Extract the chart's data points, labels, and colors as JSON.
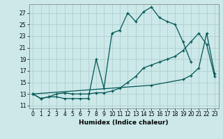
{
  "xlabel": "Humidex (Indice chaleur)",
  "bg_color": "#cce8e8",
  "grid_color": "#b0d0d0",
  "line_color": "#005555",
  "xlim": [
    -0.5,
    23.5
  ],
  "ylim": [
    10.5,
    28.5
  ],
  "xticks": [
    0,
    1,
    2,
    3,
    4,
    5,
    6,
    7,
    8,
    9,
    10,
    11,
    12,
    13,
    14,
    15,
    16,
    17,
    18,
    19,
    20,
    21,
    22,
    23
  ],
  "yticks": [
    11,
    13,
    15,
    17,
    19,
    21,
    23,
    25,
    27
  ],
  "series1_x": [
    0,
    1,
    2,
    3,
    4,
    5,
    6,
    7,
    8,
    9,
    10,
    11,
    12,
    13,
    14,
    15,
    16,
    17,
    18,
    19,
    20
  ],
  "series1_y": [
    13.0,
    12.2,
    12.5,
    12.5,
    12.2,
    12.2,
    12.2,
    12.2,
    19.0,
    14.0,
    23.5,
    24.0,
    27.0,
    25.5,
    27.2,
    28.0,
    26.2,
    25.5,
    25.0,
    22.0,
    18.5
  ],
  "series2_x": [
    0,
    1,
    2,
    3,
    4,
    5,
    6,
    7,
    8,
    9,
    10,
    11,
    12,
    13,
    14,
    15,
    16,
    17,
    18,
    19,
    20,
    21,
    22,
    23
  ],
  "series2_y": [
    13.0,
    12.2,
    12.5,
    13.0,
    13.2,
    13.0,
    13.0,
    13.0,
    13.2,
    13.2,
    13.5,
    14.0,
    15.0,
    16.0,
    17.5,
    18.0,
    18.5,
    19.0,
    19.5,
    20.5,
    22.0,
    23.5,
    21.5,
    16.0
  ],
  "series3_x": [
    0,
    15,
    19,
    20,
    21,
    22,
    23
  ],
  "series3_y": [
    13.0,
    14.5,
    15.5,
    16.2,
    17.5,
    23.5,
    16.5
  ]
}
